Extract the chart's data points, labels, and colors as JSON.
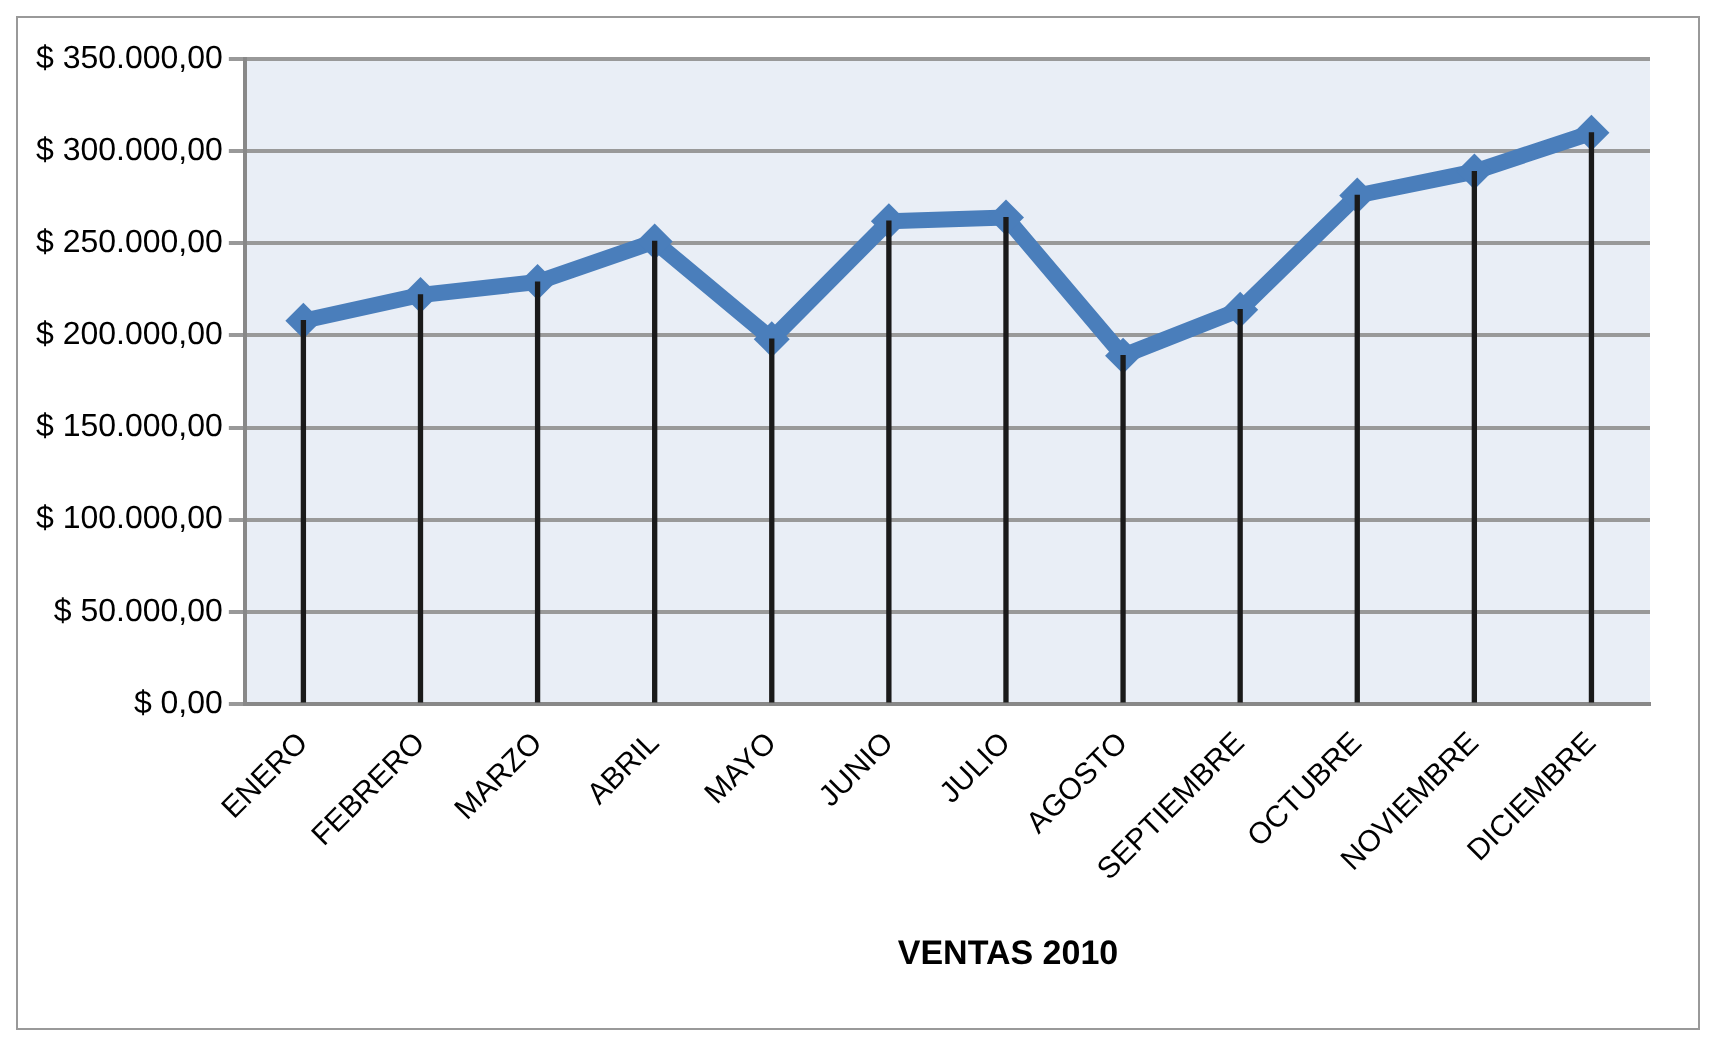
{
  "chart_data": {
    "type": "line",
    "title": "VENTAS 2010",
    "categories": [
      "ENERO",
      "FEBRERO",
      "MARZO",
      "ABRIL",
      "MAYO",
      "JUNIO",
      "JULIO",
      "AGOSTO",
      "SEPTIEMBRE",
      "OCTUBRE",
      "NOVIEMBRE",
      "DICIEMBRE"
    ],
    "series": [
      {
        "color": "#4a7ebb",
        "values": [
          208000,
          222000,
          229000,
          251000,
          198000,
          262000,
          264000,
          189000,
          214000,
          276000,
          289000,
          310000
        ]
      },
      {
        "type": "bar",
        "color": "#1a1a1a",
        "values": [
          208000,
          222000,
          229000,
          251000,
          198000,
          262000,
          264000,
          189000,
          214000,
          276000,
          289000,
          310000
        ]
      }
    ],
    "ylim": [
      0,
      350000
    ],
    "yticks": [
      {
        "value": 0,
        "label": "$ 0,00"
      },
      {
        "value": 50000,
        "label": "$ 50.000,00"
      },
      {
        "value": 100000,
        "label": "$ 100.000,00"
      },
      {
        "value": 150000,
        "label": "$ 150.000,00"
      },
      {
        "value": 200000,
        "label": "$ 200.000,00"
      },
      {
        "value": 250000,
        "label": "$ 250.000,00"
      },
      {
        "value": 300000,
        "label": "$ 300.000,00"
      },
      {
        "value": 350000,
        "label": "$ 350.000,00"
      }
    ],
    "grid": "y",
    "legend": false,
    "marker": "diamond",
    "line_style": "solid"
  }
}
